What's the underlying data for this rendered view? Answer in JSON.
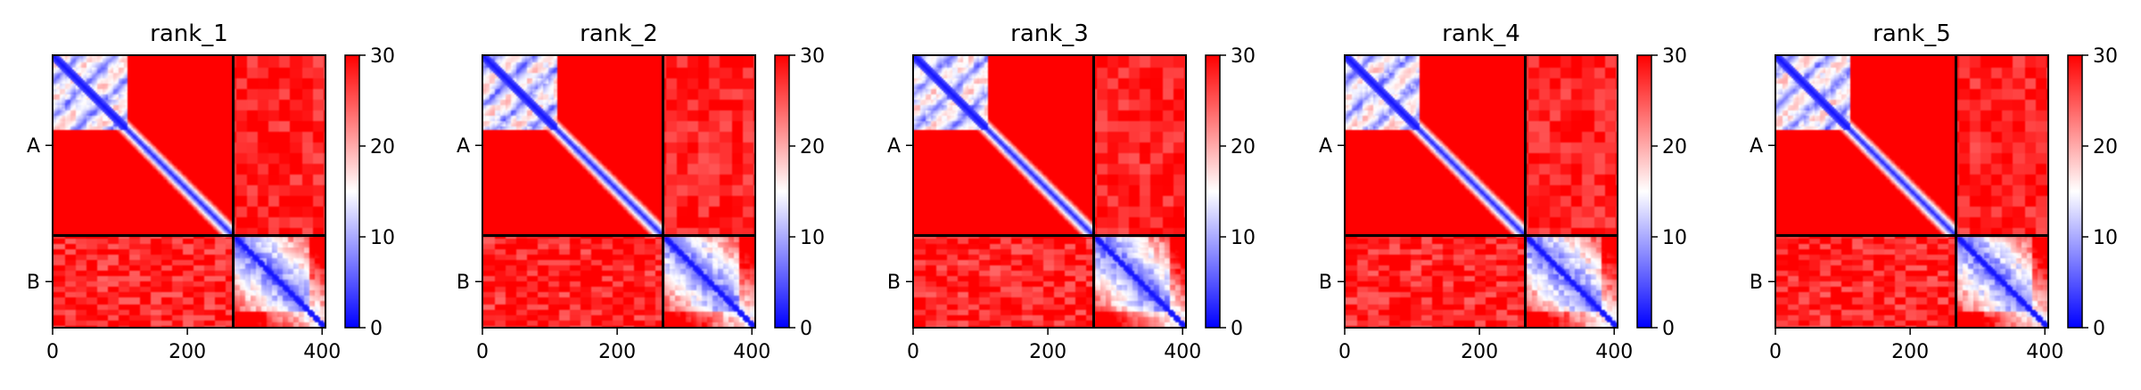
{
  "chart_data": {
    "type": "heatmap",
    "colormap": {
      "name": "bwr",
      "low": "#0000ff",
      "mid": "#ffffff",
      "high": "#ff0000"
    },
    "value_range": [
      0,
      30
    ],
    "colorbar_ticks": [
      "0",
      "10",
      "20",
      "30"
    ],
    "x_ticks": [
      "0",
      "200",
      "400"
    ],
    "x_tick_values": [
      0,
      200,
      400
    ],
    "xlim": [
      0,
      405
    ],
    "chain_labels": [
      "A",
      "B"
    ],
    "chain_boundary": 268,
    "sequence_length": 405,
    "panels": [
      {
        "title": "rank_1"
      },
      {
        "title": "rank_2"
      },
      {
        "title": "rank_3"
      },
      {
        "title": "rank_4"
      },
      {
        "title": "rank_5"
      }
    ]
  }
}
